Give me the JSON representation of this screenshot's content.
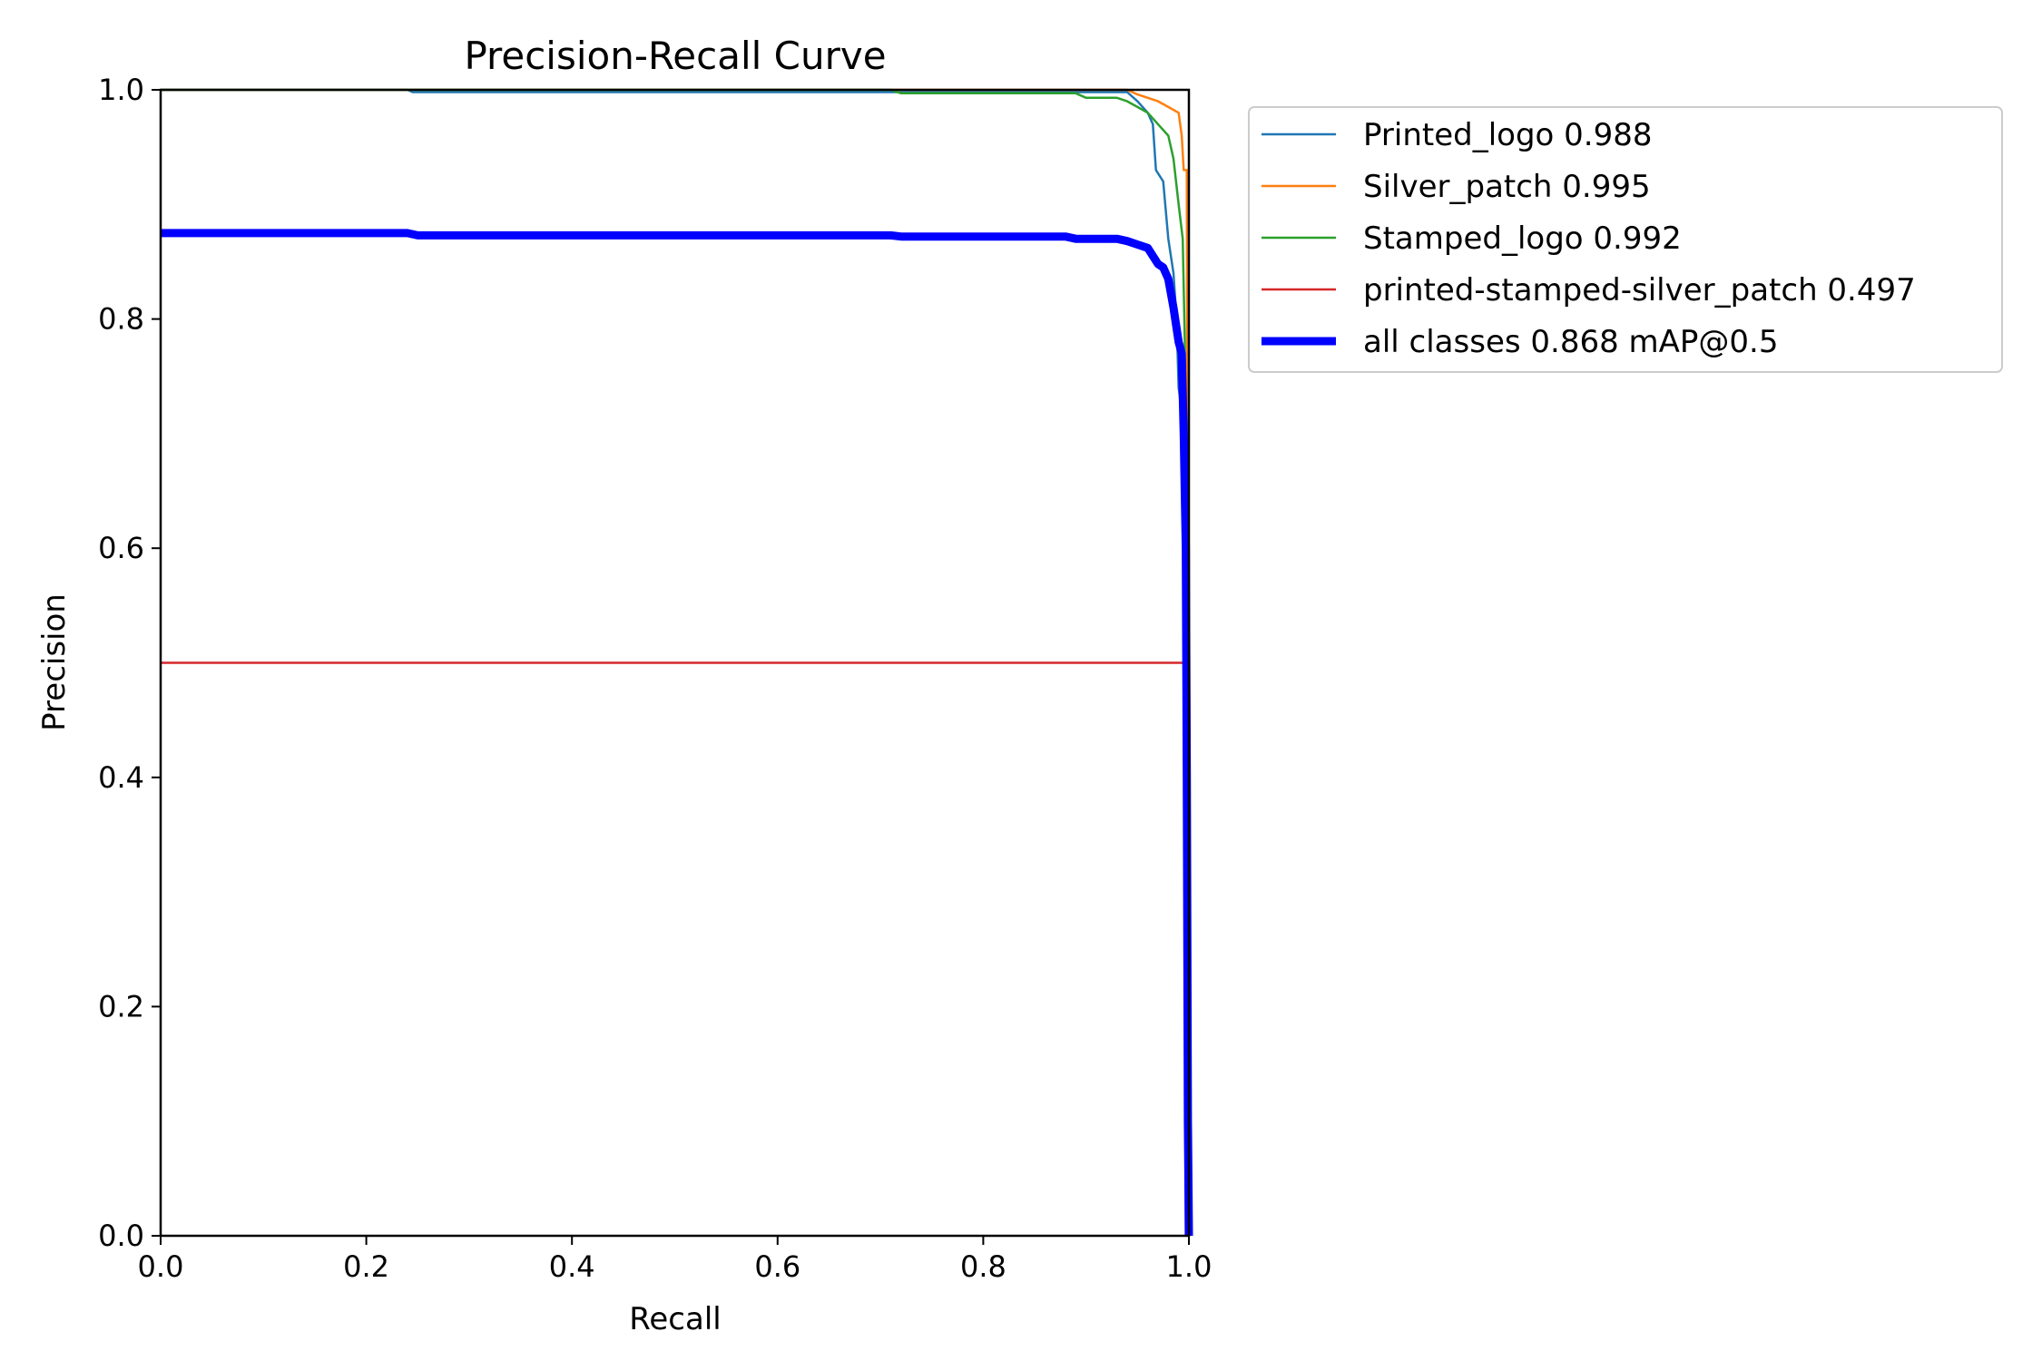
{
  "chart_data": {
    "type": "line",
    "title": "Precision-Recall Curve",
    "xlabel": "Recall",
    "ylabel": "Precision",
    "xlim": [
      0.0,
      1.0
    ],
    "ylim": [
      0.0,
      1.0
    ],
    "xticks": [
      "0.0",
      "0.2",
      "0.4",
      "0.6",
      "0.8",
      "1.0"
    ],
    "yticks": [
      "0.0",
      "0.2",
      "0.4",
      "0.6",
      "0.8",
      "1.0"
    ],
    "grid": false,
    "legend_position": "outside-top-right",
    "series": [
      {
        "name": "Printed_logo 0.988",
        "color": "#1f77b4",
        "emphasis": false,
        "points": [
          [
            0.0,
            1.0
          ],
          [
            0.24,
            1.0
          ],
          [
            0.245,
            0.998
          ],
          [
            0.94,
            0.998
          ],
          [
            0.95,
            0.99
          ],
          [
            0.96,
            0.98
          ],
          [
            0.965,
            0.97
          ],
          [
            0.968,
            0.93
          ],
          [
            0.975,
            0.92
          ],
          [
            0.98,
            0.87
          ],
          [
            0.985,
            0.84
          ],
          [
            0.988,
            0.8
          ],
          [
            0.99,
            0.74
          ],
          [
            0.993,
            0.72
          ],
          [
            0.996,
            0.6
          ],
          [
            0.998,
            0.3
          ],
          [
            0.999,
            0.0
          ]
        ]
      },
      {
        "name": "Silver_patch 0.995",
        "color": "#ff7f0e",
        "emphasis": false,
        "points": [
          [
            0.0,
            1.0
          ],
          [
            0.94,
            1.0
          ],
          [
            0.95,
            0.996
          ],
          [
            0.96,
            0.993
          ],
          [
            0.97,
            0.99
          ],
          [
            0.98,
            0.985
          ],
          [
            0.99,
            0.98
          ],
          [
            0.993,
            0.96
          ],
          [
            0.995,
            0.93
          ],
          [
            0.998,
            0.93
          ],
          [
            0.999,
            0.5
          ],
          [
            1.0,
            0.0
          ]
        ]
      },
      {
        "name": "Stamped_logo 0.992",
        "color": "#2ca02c",
        "emphasis": false,
        "points": [
          [
            0.0,
            1.0
          ],
          [
            0.71,
            1.0
          ],
          [
            0.72,
            0.997
          ],
          [
            0.89,
            0.997
          ],
          [
            0.9,
            0.993
          ],
          [
            0.93,
            0.993
          ],
          [
            0.94,
            0.99
          ],
          [
            0.95,
            0.985
          ],
          [
            0.96,
            0.98
          ],
          [
            0.97,
            0.97
          ],
          [
            0.98,
            0.96
          ],
          [
            0.985,
            0.94
          ],
          [
            0.99,
            0.9
          ],
          [
            0.994,
            0.87
          ],
          [
            0.996,
            0.78
          ],
          [
            0.998,
            0.5
          ],
          [
            0.999,
            0.0
          ]
        ]
      },
      {
        "name": "printed-stamped-silver_patch 0.497",
        "color": "#d62728",
        "emphasis": false,
        "points": [
          [
            0.0,
            0.5
          ],
          [
            0.996,
            0.5
          ],
          [
            0.997,
            0.0
          ]
        ]
      },
      {
        "name": "all classes 0.868 mAP@0.5",
        "color": "#0000ff",
        "emphasis": true,
        "points": [
          [
            0.0,
            0.875
          ],
          [
            0.24,
            0.875
          ],
          [
            0.25,
            0.873
          ],
          [
            0.71,
            0.873
          ],
          [
            0.72,
            0.872
          ],
          [
            0.88,
            0.872
          ],
          [
            0.89,
            0.87
          ],
          [
            0.93,
            0.87
          ],
          [
            0.94,
            0.868
          ],
          [
            0.95,
            0.865
          ],
          [
            0.96,
            0.862
          ],
          [
            0.965,
            0.855
          ],
          [
            0.97,
            0.848
          ],
          [
            0.975,
            0.845
          ],
          [
            0.98,
            0.835
          ],
          [
            0.985,
            0.81
          ],
          [
            0.99,
            0.78
          ],
          [
            0.993,
            0.77
          ],
          [
            0.995,
            0.7
          ],
          [
            0.997,
            0.6
          ],
          [
            0.998,
            0.4
          ],
          [
            0.999,
            0.1
          ],
          [
            1.0,
            0.0
          ]
        ]
      }
    ]
  }
}
